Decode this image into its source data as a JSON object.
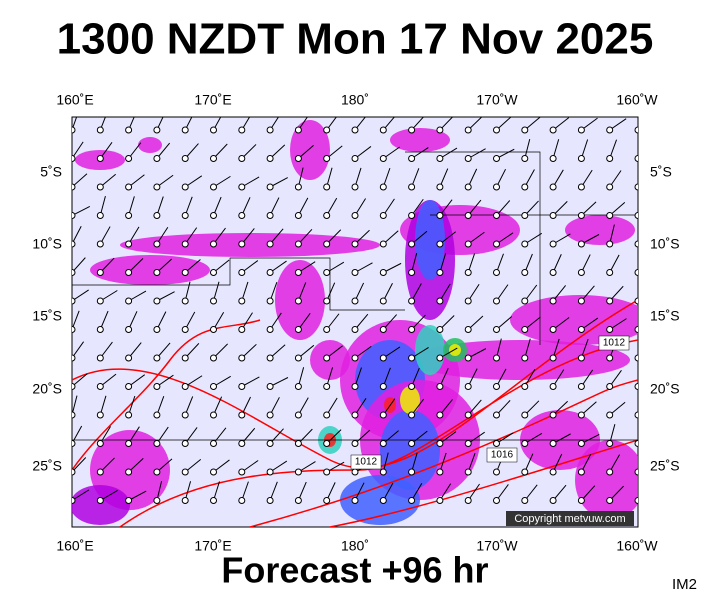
{
  "title": "1300 NZDT Mon 17 Nov 2025",
  "footer": "Forecast +96 hr",
  "image_id": "IM2",
  "copyright": "Copyright metvuw.com",
  "longitude_labels": [
    "160˚E",
    "170˚E",
    "180˚",
    "170˚W",
    "160˚W"
  ],
  "latitude_labels": [
    "5˚S",
    "10˚S",
    "15˚S",
    "20˚S",
    "25˚S"
  ],
  "isobar_labels": [
    "1012",
    "1012",
    "1016"
  ]
}
